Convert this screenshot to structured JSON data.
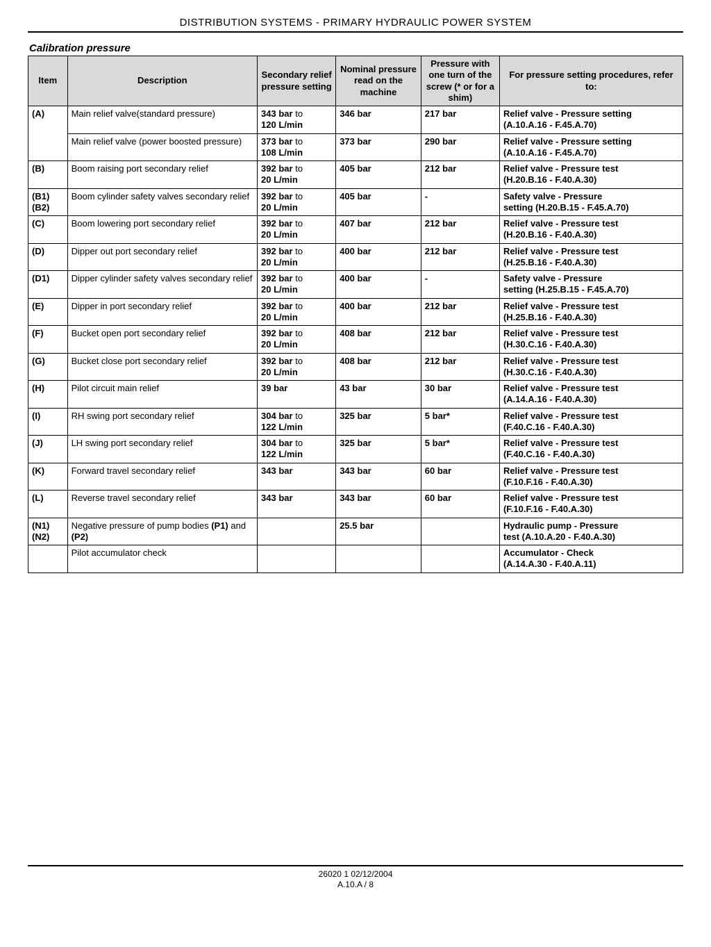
{
  "header": {
    "title": "DISTRIBUTION SYSTEMS - PRIMARY HYDRAULIC POWER SYSTEM",
    "section": "Calibration pressure"
  },
  "table": {
    "columns": {
      "item": "Item",
      "desc": "Description",
      "secondary": "Secondary relief pressure setting",
      "nominal": "Nominal pressure read on the machine",
      "pressure": "Pressure with one turn of the screw (* or for a shim)",
      "ref": "For pressure setting procedures, refer to:"
    },
    "rows": [
      {
        "item": "(A)",
        "rowspan": 2,
        "desc": "Main relief valve(standard pressure)",
        "sec1": "343 bar",
        "sec2": " to ",
        "sec3": "120 L/min",
        "nom": "346 bar",
        "pres": "217 bar",
        "ref1": "Relief valve - Pressure setting",
        "ref2": "(A.10.A.16 - F.45.A.70)"
      },
      {
        "item": "",
        "desc": "Main relief valve (power boosted pressure)",
        "sec1": "373 bar",
        "sec2": " to ",
        "sec3": "108 L/min",
        "nom": "373 bar",
        "pres": "290 bar",
        "ref1": "Relief valve - Pressure setting",
        "ref2": "(A.10.A.16 - F.45.A.70)"
      },
      {
        "item": "(B)",
        "desc": "Boom raising port secondary relief",
        "sec1": "392 bar",
        "sec2": " to ",
        "sec3": "20 L/min",
        "nom": "405 bar",
        "pres": "212 bar",
        "ref1": "Relief valve - Pressure test",
        "ref2": "(H.20.B.16 - F.40.A.30)"
      },
      {
        "item": "(B1) (B2)",
        "desc": "Boom cylinder safety valves secondary relief",
        "sec1": "392 bar",
        "sec2": " to ",
        "sec3": "20 L/min",
        "nom": "405 bar",
        "pres": "-",
        "ref1": "Safety valve - Pressure",
        "ref2": "setting (H.20.B.15 - F.45.A.70)"
      },
      {
        "item": "(C)",
        "desc": "Boom lowering port secondary relief",
        "sec1": "392 bar",
        "sec2": " to ",
        "sec3": "20 L/min",
        "nom": "407 bar",
        "pres": "212 bar",
        "ref1": "Relief valve - Pressure test",
        "ref2": "(H.20.B.16 - F.40.A.30)"
      },
      {
        "item": "(D)",
        "desc": "Dipper out port secondary relief",
        "sec1": "392 bar",
        "sec2": " to ",
        "sec3": "20 L/min",
        "nom": "400 bar",
        "pres": "212 bar",
        "ref1": "Relief valve - Pressure test",
        "ref2": "(H.25.B.16 - F.40.A.30)"
      },
      {
        "item": "(D1)",
        "desc": "Dipper cylinder safety valves secondary relief",
        "sec1": "392 bar",
        "sec2": " to ",
        "sec3": "20 L/min",
        "nom": "400 bar",
        "pres": "-",
        "ref1": "Safety valve - Pressure",
        "ref2": "setting (H.25.B.15 - F.45.A.70)"
      },
      {
        "item": "(E)",
        "desc": "Dipper in port secondary relief",
        "sec1": "392 bar",
        "sec2": " to ",
        "sec3": "20 L/min",
        "nom": "400 bar",
        "pres": "212 bar",
        "ref1": "Relief valve - Pressure test",
        "ref2": "(H.25.B.16 - F.40.A.30)"
      },
      {
        "item": "(F)",
        "desc": "Bucket open port secondary relief",
        "sec1": "392 bar",
        "sec2": " to ",
        "sec3": "20 L/min",
        "nom": "408 bar",
        "pres": "212 bar",
        "ref1": "Relief valve - Pressure test",
        "ref2": "(H.30.C.16 - F.40.A.30)"
      },
      {
        "item": "(G)",
        "desc": "Bucket close port secondary relief",
        "sec1": "392 bar",
        "sec2": " to ",
        "sec3": "20 L/min",
        "nom": "408 bar",
        "pres": "212 bar",
        "ref1": "Relief valve - Pressure test",
        "ref2": "(H.30.C.16 - F.40.A.30)"
      },
      {
        "item": "(H)",
        "desc": "Pilot circuit main relief",
        "sec1": "39 bar",
        "sec2": "",
        "sec3": "",
        "nom": "43 bar",
        "pres": "30 bar",
        "ref1": "Relief valve - Pressure test",
        "ref2": "(A.14.A.16 - F.40.A.30)"
      },
      {
        "item": "(I)",
        "desc": "RH swing port secondary relief",
        "sec1": "304 bar",
        "sec2": " to ",
        "sec3": "122 L/min",
        "nom": "325 bar",
        "pres": "5 bar*",
        "ref1": "Relief valve - Pressure test",
        "ref2": "(F.40.C.16 - F.40.A.30)"
      },
      {
        "item": "(J)",
        "desc": "LH swing port secondary relief",
        "sec1": "304 bar",
        "sec2": " to ",
        "sec3": "122 L/min",
        "nom": "325 bar",
        "pres": "5 bar*",
        "ref1": "Relief valve - Pressure test",
        "ref2": "(F.40.C.16 - F.40.A.30)"
      },
      {
        "item": "(K)",
        "desc": "Forward travel secondary relief",
        "sec1": "343 bar",
        "sec2": "",
        "sec3": "",
        "nom": "343 bar",
        "pres": "60 bar",
        "ref1": "Relief valve - Pressure test",
        "ref2": "(F.10.F.16 - F.40.A.30)"
      },
      {
        "item": "(L)",
        "desc": "Reverse travel secondary relief",
        "sec1": "343 bar",
        "sec2": "",
        "sec3": "",
        "nom": "343 bar",
        "pres": "60 bar",
        "ref1": "Relief valve - Pressure test",
        "ref2": "(F.10.F.16 - F.40.A.30)"
      },
      {
        "item": "(N1) (N2)",
        "desc_html": "Negative pressure of pump bodies <b>(P1)</b> and <b>(P2)</b>",
        "desc": "Negative pressure of pump bodies (P1) and (P2)",
        "sec1": "",
        "sec2": "",
        "sec3": "",
        "nom": "25.5 bar",
        "pres": "",
        "ref1": "Hydraulic pump - Pressure",
        "ref2": "test (A.10.A.20 - F.40.A.30)"
      },
      {
        "item": "",
        "desc": "Pilot accumulator check",
        "sec1": "",
        "sec2": "",
        "sec3": "",
        "nom": "",
        "pres": "",
        "ref1": "Accumulator - Check",
        "ref2": "(A.14.A.30 - F.40.A.11)"
      }
    ]
  },
  "footer": {
    "line1": "26020 1 02/12/2004",
    "line2": "A.10.A / 8"
  }
}
